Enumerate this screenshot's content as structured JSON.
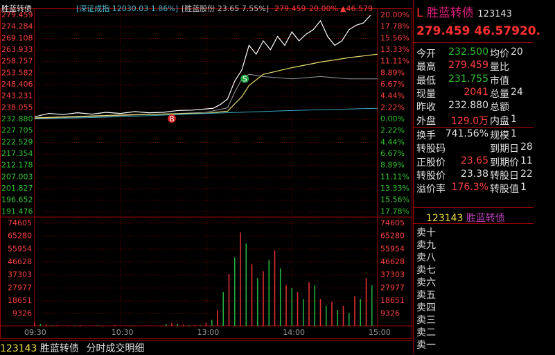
{
  "header": {
    "name": "胜蓝转债",
    "index": "[深证成指 12030.03 1.86%]",
    "stock": "[胜蓝股份 23.65 7.55%]",
    "price": "279.459",
    "pct": "20.00%",
    "change": "▲46.579"
  },
  "chart": {
    "price_ticks": [
      {
        "value": 279.459,
        "label": "279.459"
      },
      {
        "value": 274.284,
        "label": "274.284"
      },
      {
        "value": 269.108,
        "label": "269.108"
      },
      {
        "value": 263.933,
        "label": "263.933"
      },
      {
        "value": 258.757,
        "label": "258.757"
      },
      {
        "value": 253.582,
        "label": "253.582"
      },
      {
        "value": 248.406,
        "label": "248.406"
      },
      {
        "value": 243.231,
        "label": "243.231"
      },
      {
        "value": 238.055,
        "label": "238.055"
      },
      {
        "value": 232.88,
        "label": "232.880"
      },
      {
        "value": 227.705,
        "label": "227.705"
      },
      {
        "value": 222.529,
        "label": "222.529"
      },
      {
        "value": 217.354,
        "label": "217.354"
      },
      {
        "value": 212.178,
        "label": "212.178"
      },
      {
        "value": 207.003,
        "label": "207.003"
      },
      {
        "value": 201.827,
        "label": "201.827"
      },
      {
        "value": 196.652,
        "label": "196.652"
      },
      {
        "value": 191.476,
        "label": "191.476"
      }
    ],
    "pct_ticks": [
      "20.00%",
      "17.78%",
      "15.56%",
      "13.33%",
      "11.11%",
      "8.89%",
      "6.67%",
      "4.44%",
      "2.22%",
      "0.00%",
      "2.22%",
      "4.44%",
      "6.67%",
      "8.89%",
      "11.11%",
      "13.33%",
      "15.56%",
      "17.78%"
    ],
    "volume_ticks": [
      74605,
      65280,
      55954,
      46628,
      37303,
      27977,
      18651,
      9326
    ],
    "time_ticks": [
      "09:30",
      "10:30",
      "13:00",
      "14:00",
      "15:00"
    ],
    "xlim": [
      0,
      240
    ],
    "lines": [
      {
        "color": "#ffffff",
        "width": 1.2,
        "x": [
          0,
          10,
          20,
          30,
          40,
          50,
          60,
          70,
          80,
          90,
          100,
          110,
          120,
          125,
          130,
          135,
          140,
          145,
          150,
          155,
          160,
          165,
          170,
          175,
          180,
          185,
          190,
          195,
          200,
          205,
          210,
          215,
          220,
          225,
          230,
          235
        ],
        "values": [
          234.0,
          235.5,
          235.0,
          235.8,
          235.2,
          236.0,
          235.5,
          236.3,
          235.8,
          236.0,
          236.8,
          237.0,
          237.5,
          237.8,
          239.5,
          242,
          250,
          255,
          266,
          262,
          268,
          264,
          270,
          266,
          272,
          268,
          271,
          273,
          277,
          270,
          266,
          268,
          273,
          275,
          276,
          279.459
        ]
      },
      {
        "color": "#9a9a9a",
        "width": 1,
        "x": [
          0,
          60,
          120,
          135,
          140,
          145,
          150,
          160,
          180,
          200,
          220,
          240
        ],
        "values": [
          233.2,
          234.5,
          236,
          238,
          245,
          251,
          253,
          252,
          251,
          252,
          251,
          251
        ]
      },
      {
        "color": "#e8e070",
        "width": 1.2,
        "x": [
          0,
          60,
          120,
          135,
          145,
          150,
          160,
          180,
          200,
          220,
          240
        ],
        "values": [
          233.5,
          234.8,
          235.6,
          236.5,
          243,
          248,
          253,
          256,
          258.5,
          260.5,
          262
        ]
      },
      {
        "color": "#3aa6c0",
        "width": 1,
        "x": [
          0,
          60,
          120,
          180,
          240
        ],
        "values": [
          233,
          234,
          235.5,
          236.8,
          237.8
        ]
      }
    ],
    "markers": [
      {
        "label": "B",
        "x": 96,
        "value": 233.2,
        "color": "#d02020"
      },
      {
        "label": "S",
        "x": 147,
        "value": 251,
        "color": "#20a040"
      }
    ],
    "volume": [
      {
        "color": "#e03030",
        "x": [
          0,
          8,
          16,
          24,
          32,
          40,
          48,
          56,
          64,
          72,
          80,
          88,
          96,
          104,
          112,
          120,
          128,
          136,
          144,
          152,
          160,
          168,
          176,
          184,
          192,
          200,
          208,
          216,
          224,
          232
        ],
        "values": [
          3000,
          1500,
          1200,
          900,
          1000,
          800,
          700,
          1200,
          900,
          600,
          800,
          700,
          2500,
          1500,
          1200,
          3000,
          12000,
          38000,
          68000,
          45000,
          40000,
          55000,
          30000,
          25000,
          32000,
          20000,
          18000,
          15000,
          22000,
          35000
        ]
      },
      {
        "color": "#20b040",
        "x": [
          4,
          12,
          20,
          28,
          36,
          44,
          52,
          60,
          68,
          76,
          84,
          92,
          100,
          108,
          116,
          124,
          132,
          140,
          148,
          156,
          164,
          172,
          180,
          188,
          196,
          204,
          212,
          220,
          228,
          236
        ],
        "values": [
          2000,
          900,
          700,
          800,
          600,
          900,
          500,
          700,
          800,
          500,
          600,
          1800,
          2000,
          1000,
          900,
          5000,
          25000,
          50000,
          60000,
          35000,
          48000,
          42000,
          28000,
          20000,
          30000,
          15000,
          12000,
          10000,
          20000,
          30000
        ]
      }
    ]
  },
  "panel": {
    "flag": "L",
    "name": "胜蓝转债",
    "code": "123143",
    "price": "279.459",
    "change": "46.579",
    "pct": "20.",
    "rows": [
      {
        "l": "今开",
        "v": "232.500",
        "c": "#30c030",
        "l2": "均价",
        "v2": "20"
      },
      {
        "l": "最高",
        "v": "279.459",
        "c": "#ff4040",
        "l2": "量比"
      },
      {
        "l": "最低",
        "v": "231.755",
        "c": "#30c030",
        "l2": "市值"
      },
      {
        "l": "现量",
        "v": "2041",
        "c": "#ff4040",
        "l2": "总量",
        "v2": "24"
      },
      {
        "l": "昨收",
        "v": "232.880",
        "c": "#e0e0e0",
        "l2": "总额"
      },
      {
        "l": "外盘",
        "v": "129.0万",
        "c": "#ff4040",
        "l2": "内盘",
        "v2": "1"
      }
    ],
    "rows2": [
      {
        "l": "换手",
        "v": "741.56%",
        "c": "#e0e0e0",
        "l2": "规模",
        "v2": "1"
      },
      {
        "l": "转股码",
        "l2": "到期日",
        "v2": "28"
      },
      {
        "l": "正股价",
        "v": "23.65",
        "c": "#ff4040",
        "l2": "到期价",
        "v2": "11"
      },
      {
        "l": "转股价",
        "v": "23.38",
        "c": "#e0e0e0",
        "l2": "转股日",
        "v2": "22"
      },
      {
        "l": "溢价率",
        "v": "176.3%",
        "c": "#ff4040",
        "l2": "转股值",
        "v2": "1"
      }
    ],
    "book_code": "123143",
    "book_name": "胜蓝转债",
    "book": [
      "卖十",
      "卖九",
      "卖八",
      "卖七",
      "卖六",
      "卖五",
      "卖四",
      "卖三",
      "卖二",
      "卖一"
    ]
  },
  "status": {
    "code": "123143",
    "name": "胜蓝转债",
    "tab": "分时成交明细"
  }
}
